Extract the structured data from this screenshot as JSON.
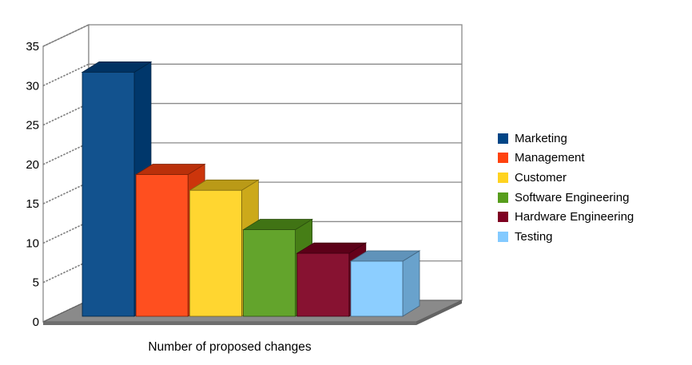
{
  "chart_data": {
    "type": "bar",
    "projection": "3d",
    "title": "",
    "xlabel": "Number of proposed changes",
    "ylabel": "",
    "categories": [
      "Marketing",
      "Management",
      "Customer",
      "Software Engineering",
      "Hardware Engineering",
      "Testing"
    ],
    "values": [
      31,
      18,
      16,
      11,
      8,
      7
    ],
    "series_colors": [
      "#004586",
      "#ff420e",
      "#ffd320",
      "#579d1c",
      "#7e0021",
      "#83caff"
    ],
    "ylim": [
      0,
      35
    ],
    "ytick_interval": 5,
    "ytick_labels": [
      "0",
      "5",
      "10",
      "15",
      "20",
      "25",
      "30",
      "35"
    ],
    "grid": true,
    "legend_position": "right"
  },
  "canvas": {
    "background": "#ffffff",
    "wall_color": "#ffffff",
    "wall_border_color": "#8a8a8a",
    "gridline_color": "#8a8a8a",
    "hatch_color": "#7d7d7d",
    "floor_color": "#8a8a8a",
    "floor_edge_color": "#5e5e5e",
    "text_color": "#000000"
  }
}
